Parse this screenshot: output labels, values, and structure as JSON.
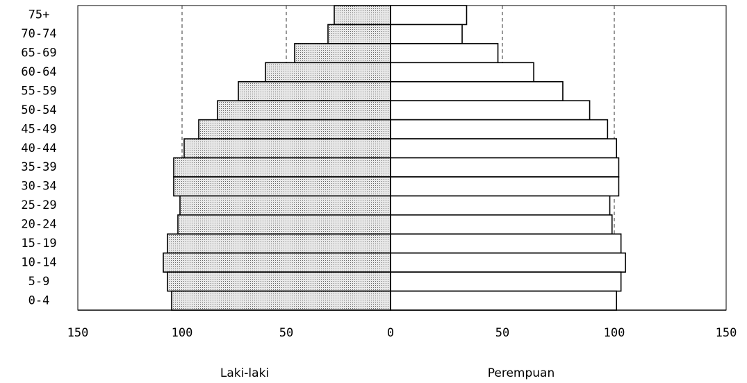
{
  "chart_data": {
    "type": "bar",
    "orientation": "horizontal",
    "categories": [
      "75+",
      "70-74",
      "65-69",
      "60-64",
      "55-59",
      "50-54",
      "45-49",
      "40-44",
      "35-39",
      "30-34",
      "25-29",
      "20-24",
      "15-19",
      "10-14",
      "5-9",
      "0-4"
    ],
    "grid": true,
    "series": [
      {
        "name": "Laki-laki",
        "color": "#cfcfcf",
        "xlim": [
          150,
          0
        ],
        "xticks": [
          150,
          100,
          50,
          0
        ],
        "values": [
          27,
          30,
          46,
          60,
          73,
          83,
          92,
          99,
          104,
          104,
          101,
          102,
          107,
          109,
          107,
          105
        ]
      },
      {
        "name": "Perempuan",
        "color": "#ffffff",
        "xlim": [
          0,
          150
        ],
        "xticks": [
          50,
          100,
          150
        ],
        "values": [
          34,
          32,
          48,
          64,
          77,
          89,
          97,
          101,
          102,
          102,
          98,
          99,
          103,
          105,
          103,
          101
        ]
      }
    ]
  }
}
